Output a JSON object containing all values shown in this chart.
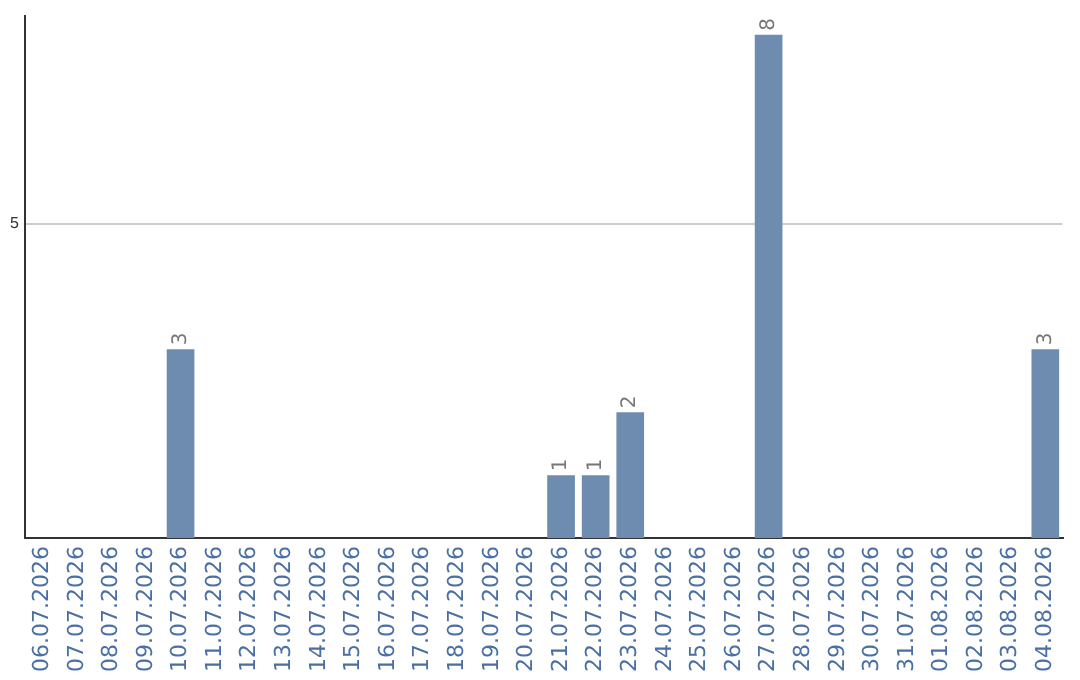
{
  "chart_data": {
    "type": "bar",
    "categories": [
      "06.07.2026",
      "07.07.2026",
      "08.07.2026",
      "09.07.2026",
      "10.07.2026",
      "11.07.2026",
      "12.07.2026",
      "13.07.2026",
      "14.07.2026",
      "15.07.2026",
      "16.07.2026",
      "17.07.2026",
      "18.07.2026",
      "19.07.2026",
      "20.07.2026",
      "21.07.2026",
      "22.07.2026",
      "23.07.2026",
      "24.07.2026",
      "25.07.2026",
      "26.07.2026",
      "27.07.2026",
      "28.07.2026",
      "29.07.2026",
      "30.07.2026",
      "31.07.2026",
      "01.08.2026",
      "02.08.2026",
      "03.08.2026",
      "04.08.2026"
    ],
    "values": [
      0,
      0,
      0,
      0,
      3,
      0,
      0,
      0,
      0,
      0,
      0,
      0,
      0,
      0,
      0,
      1,
      1,
      2,
      0,
      0,
      0,
      8,
      0,
      0,
      0,
      0,
      0,
      0,
      0,
      3
    ],
    "value_labels": [
      null,
      null,
      null,
      null,
      "3",
      null,
      null,
      null,
      null,
      null,
      null,
      null,
      null,
      null,
      null,
      "1",
      "1",
      "2",
      null,
      null,
      null,
      "8",
      null,
      null,
      null,
      null,
      null,
      null,
      null,
      "3"
    ],
    "color": "#6d8caf",
    "ylim": [
      0,
      8.3
    ],
    "yticks": [
      5
    ],
    "grid": "y",
    "legend": false
  }
}
